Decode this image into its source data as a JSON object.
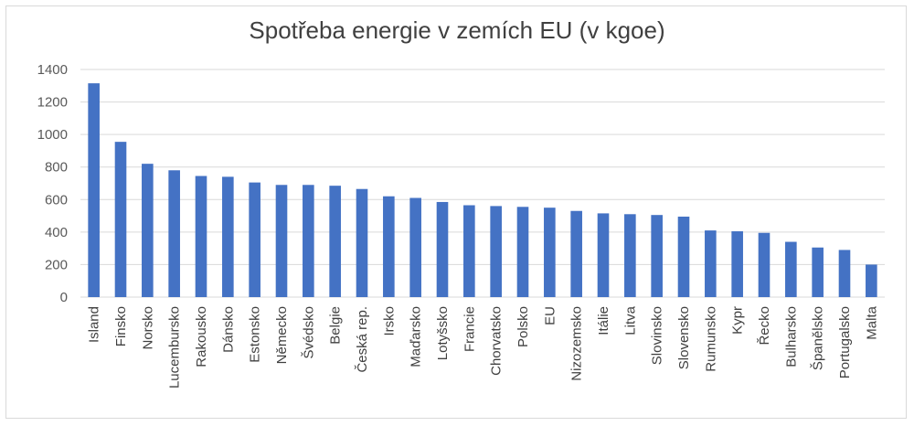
{
  "chart_data": {
    "type": "bar",
    "title": "Spotřeba energie v zemích EU (v kgoe)",
    "xlabel": "",
    "ylabel": "",
    "ylim": [
      0,
      1400
    ],
    "yticks": [
      0,
      200,
      400,
      600,
      800,
      1000,
      1200,
      1400
    ],
    "grid": true,
    "color": "#4472c4",
    "categories": [
      "Island",
      "Finsko",
      "Norsko",
      "Lucembursko",
      "Rakousko",
      "Dánsko",
      "Estonsko",
      "Německo",
      "Švédsko",
      "Belgie",
      "Česká rep.",
      "Irsko",
      "Maďarsko",
      "Lotyšsko",
      "Francie",
      "Chorvatsko",
      "Polsko",
      "EU",
      "Nizozemsko",
      "Itálie",
      "Litva",
      "Slovinsko",
      "Slovensko",
      "Rumunsko",
      "Kypr",
      "Řecko",
      "Bulharsko",
      "Španělsko",
      "Portugalsko",
      "Malta"
    ],
    "values": [
      1315,
      955,
      820,
      780,
      745,
      740,
      705,
      690,
      690,
      685,
      665,
      620,
      610,
      585,
      565,
      560,
      555,
      550,
      530,
      515,
      510,
      505,
      495,
      410,
      405,
      395,
      340,
      305,
      290,
      200
    ]
  }
}
